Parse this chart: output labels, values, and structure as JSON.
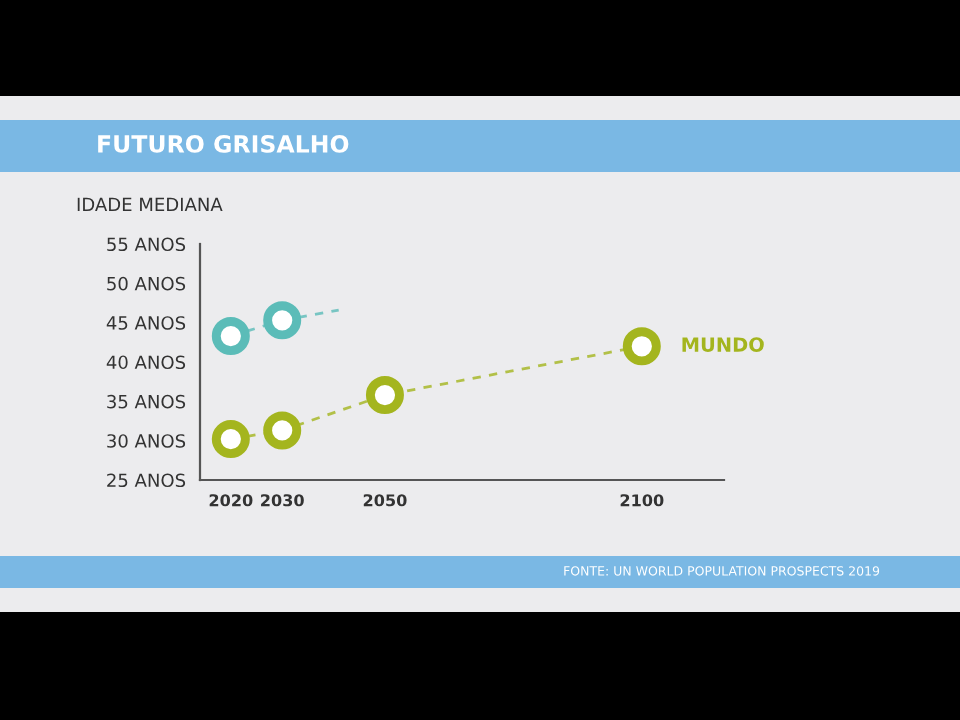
{
  "chart_data": {
    "type": "line",
    "title": "FUTURO GRISALHO",
    "ylabel": "IDADE MEDIANA",
    "series": [
      {
        "color": "#5bbcb8",
        "x": [
          2020,
          2030
        ],
        "values": [
          43.3,
          45.3
        ],
        "marker": "circle",
        "line_style": "dashed"
      },
      {
        "color": "#5bbcb8",
        "x": [
          2030,
          2041
        ],
        "values": [
          45.3,
          46.6
        ],
        "marker": "none",
        "line_style": "dashed"
      },
      {
        "name": "MUNDO",
        "color": "#a4b51e",
        "x": [
          2020,
          2030,
          2050,
          2100
        ],
        "values": [
          30.2,
          31.3,
          35.8,
          42.0
        ],
        "marker": "circle",
        "line_style": "dashed"
      }
    ],
    "xlim": [
      2014,
      2116
    ],
    "ylim": [
      25,
      55
    ],
    "xticks": [
      2020,
      2030,
      2050,
      2100
    ],
    "yticks": [
      {
        "value": 25,
        "label": "25 ANOS"
      },
      {
        "value": 30,
        "label": "30 ANOS"
      },
      {
        "value": 35,
        "label": "35 ANOS"
      },
      {
        "value": 40,
        "label": "40 ANOS"
      },
      {
        "value": 45,
        "label": "45 ANOS"
      },
      {
        "value": 50,
        "label": "50 ANOS"
      },
      {
        "value": 55,
        "label": "55 ANOS"
      }
    ],
    "grid": false,
    "legend": false,
    "annotations": [
      "FONTE: UN WORLD POPULATION PROSPECTS 2019"
    ]
  }
}
